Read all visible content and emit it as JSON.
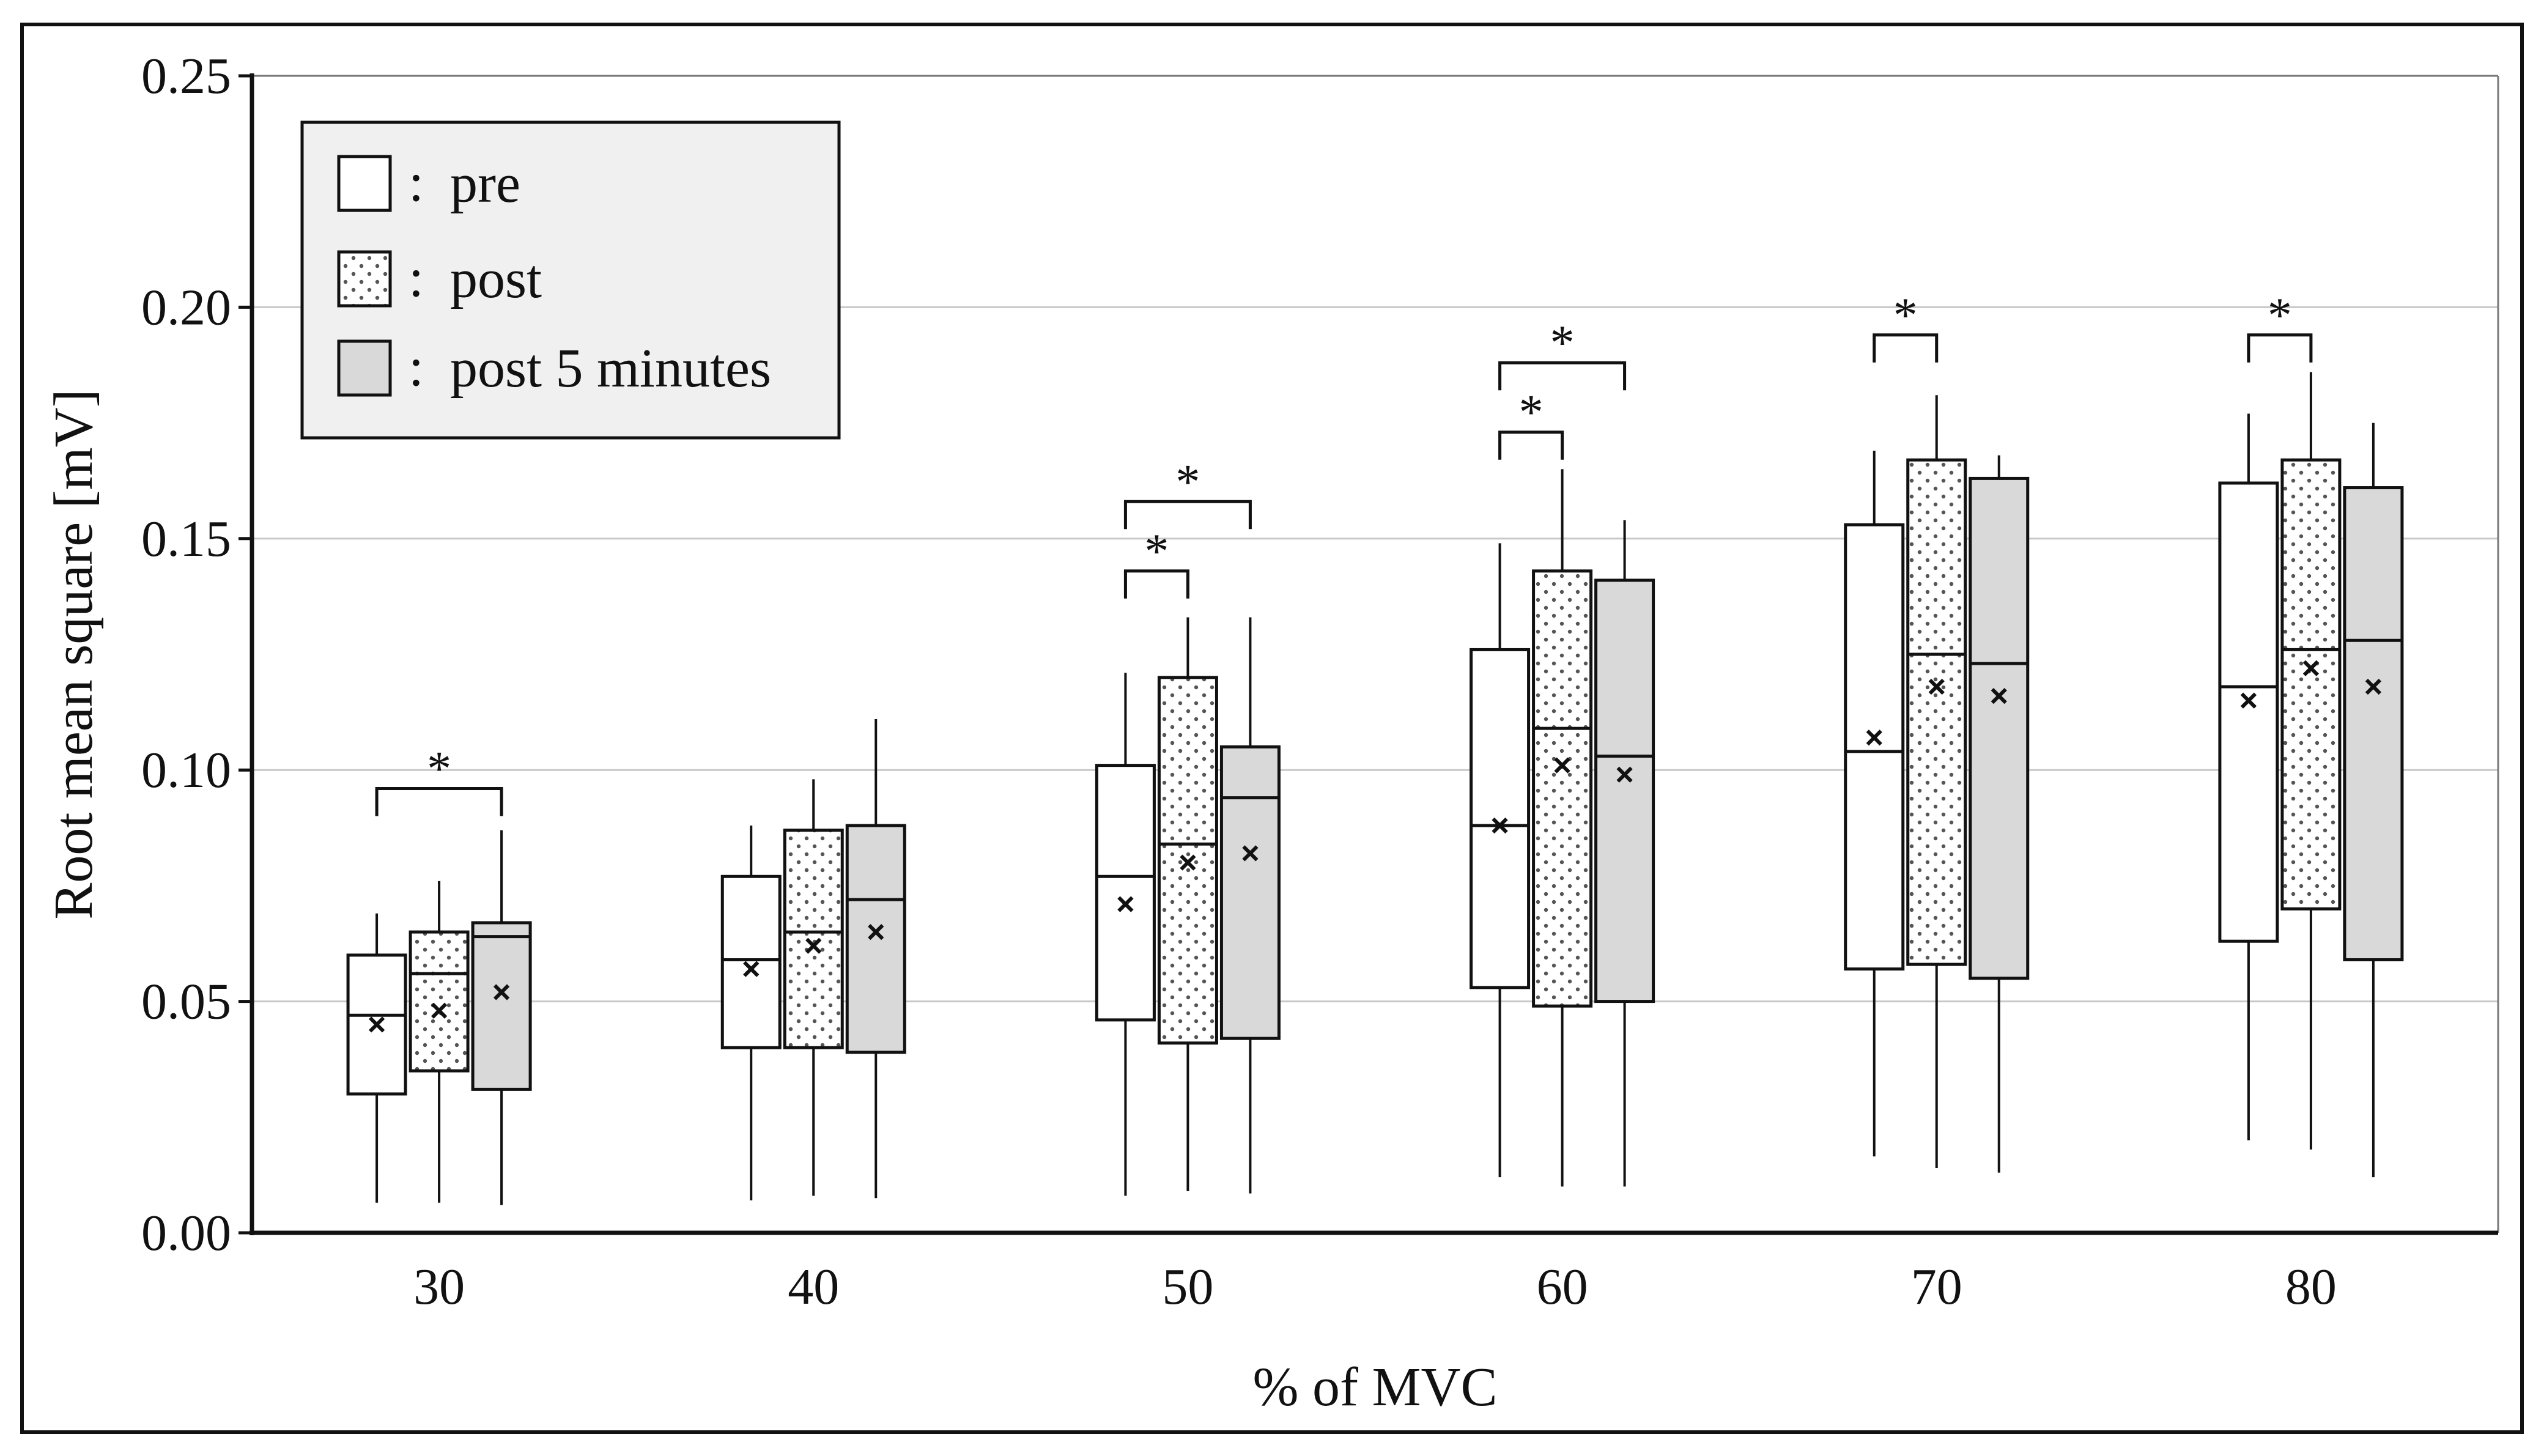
{
  "chart_data": {
    "type": "boxplot",
    "xlabel": "% of MVC",
    "ylabel": "Root mean square [mV]",
    "ylim": [
      0,
      0.25
    ],
    "yticks": [
      "0.00",
      "0.05",
      "0.10",
      "0.15",
      "0.20",
      "0.25"
    ],
    "ytick_values": [
      0,
      0.05,
      0.1,
      0.15,
      0.2,
      0.25
    ],
    "categories": [
      "30",
      "40",
      "50",
      "60",
      "70",
      "80"
    ],
    "grid": true,
    "legend": {
      "placement": "top-left",
      "entries": [
        {
          "label": "pre",
          "fill": "white"
        },
        {
          "label": "post",
          "fill": "dots"
        },
        {
          "label": "post 5 minutes",
          "fill": "gray"
        }
      ],
      "separator": ":"
    },
    "series": [
      {
        "name": "pre",
        "boxes": [
          {
            "min": 0.0065,
            "q1": 0.03,
            "median": 0.047,
            "q3": 0.06,
            "max": 0.069,
            "mean": 0.045
          },
          {
            "min": 0.007,
            "q1": 0.04,
            "median": 0.059,
            "q3": 0.077,
            "max": 0.088,
            "mean": 0.057
          },
          {
            "min": 0.008,
            "q1": 0.046,
            "median": 0.077,
            "q3": 0.101,
            "max": 0.121,
            "mean": 0.071
          },
          {
            "min": 0.012,
            "q1": 0.053,
            "median": 0.088,
            "q3": 0.126,
            "max": 0.149,
            "mean": 0.088
          },
          {
            "min": 0.0165,
            "q1": 0.057,
            "median": 0.104,
            "q3": 0.153,
            "max": 0.169,
            "mean": 0.107
          },
          {
            "min": 0.02,
            "q1": 0.063,
            "median": 0.118,
            "q3": 0.162,
            "max": 0.177,
            "mean": 0.115
          }
        ]
      },
      {
        "name": "post",
        "boxes": [
          {
            "min": 0.0065,
            "q1": 0.035,
            "median": 0.056,
            "q3": 0.065,
            "max": 0.076,
            "mean": 0.048
          },
          {
            "min": 0.008,
            "q1": 0.04,
            "median": 0.065,
            "q3": 0.087,
            "max": 0.098,
            "mean": 0.062
          },
          {
            "min": 0.009,
            "q1": 0.041,
            "median": 0.084,
            "q3": 0.12,
            "max": 0.133,
            "mean": 0.08
          },
          {
            "min": 0.01,
            "q1": 0.049,
            "median": 0.109,
            "q3": 0.143,
            "max": 0.165,
            "mean": 0.101
          },
          {
            "min": 0.014,
            "q1": 0.058,
            "median": 0.125,
            "q3": 0.167,
            "max": 0.181,
            "mean": 0.118
          },
          {
            "min": 0.018,
            "q1": 0.07,
            "median": 0.126,
            "q3": 0.167,
            "max": 0.186,
            "mean": 0.122
          }
        ]
      },
      {
        "name": "post 5 minutes",
        "boxes": [
          {
            "min": 0.006,
            "q1": 0.031,
            "median": 0.064,
            "q3": 0.067,
            "max": 0.087,
            "mean": 0.052
          },
          {
            "min": 0.0075,
            "q1": 0.039,
            "median": 0.072,
            "q3": 0.088,
            "max": 0.111,
            "mean": 0.065
          },
          {
            "min": 0.0085,
            "q1": 0.042,
            "median": 0.094,
            "q3": 0.105,
            "max": 0.133,
            "mean": 0.082
          },
          {
            "min": 0.01,
            "q1": 0.05,
            "median": 0.103,
            "q3": 0.141,
            "max": 0.154,
            "mean": 0.099
          },
          {
            "min": 0.013,
            "q1": 0.055,
            "median": 0.123,
            "q3": 0.163,
            "max": 0.168,
            "mean": 0.116
          },
          {
            "min": 0.012,
            "q1": 0.059,
            "median": 0.128,
            "q3": 0.161,
            "max": 0.175,
            "mean": 0.118
          }
        ]
      }
    ],
    "significance": [
      {
        "category": "30",
        "from": "pre",
        "to": "post 5 minutes",
        "y": 0.096,
        "label": "*"
      },
      {
        "category": "50",
        "from": "pre",
        "to": "post",
        "y": 0.143,
        "label": "*"
      },
      {
        "category": "50",
        "from": "pre",
        "to": "post 5 minutes",
        "y": 0.158,
        "label": "*"
      },
      {
        "category": "60",
        "from": "pre",
        "to": "post",
        "y": 0.173,
        "label": "*"
      },
      {
        "category": "60",
        "from": "pre",
        "to": "post 5 minutes",
        "y": 0.188,
        "label": "*"
      },
      {
        "category": "70",
        "from": "pre",
        "to": "post",
        "y": 0.194,
        "label": "*"
      },
      {
        "category": "80",
        "from": "pre",
        "to": "post",
        "y": 0.194,
        "label": "*"
      }
    ]
  }
}
